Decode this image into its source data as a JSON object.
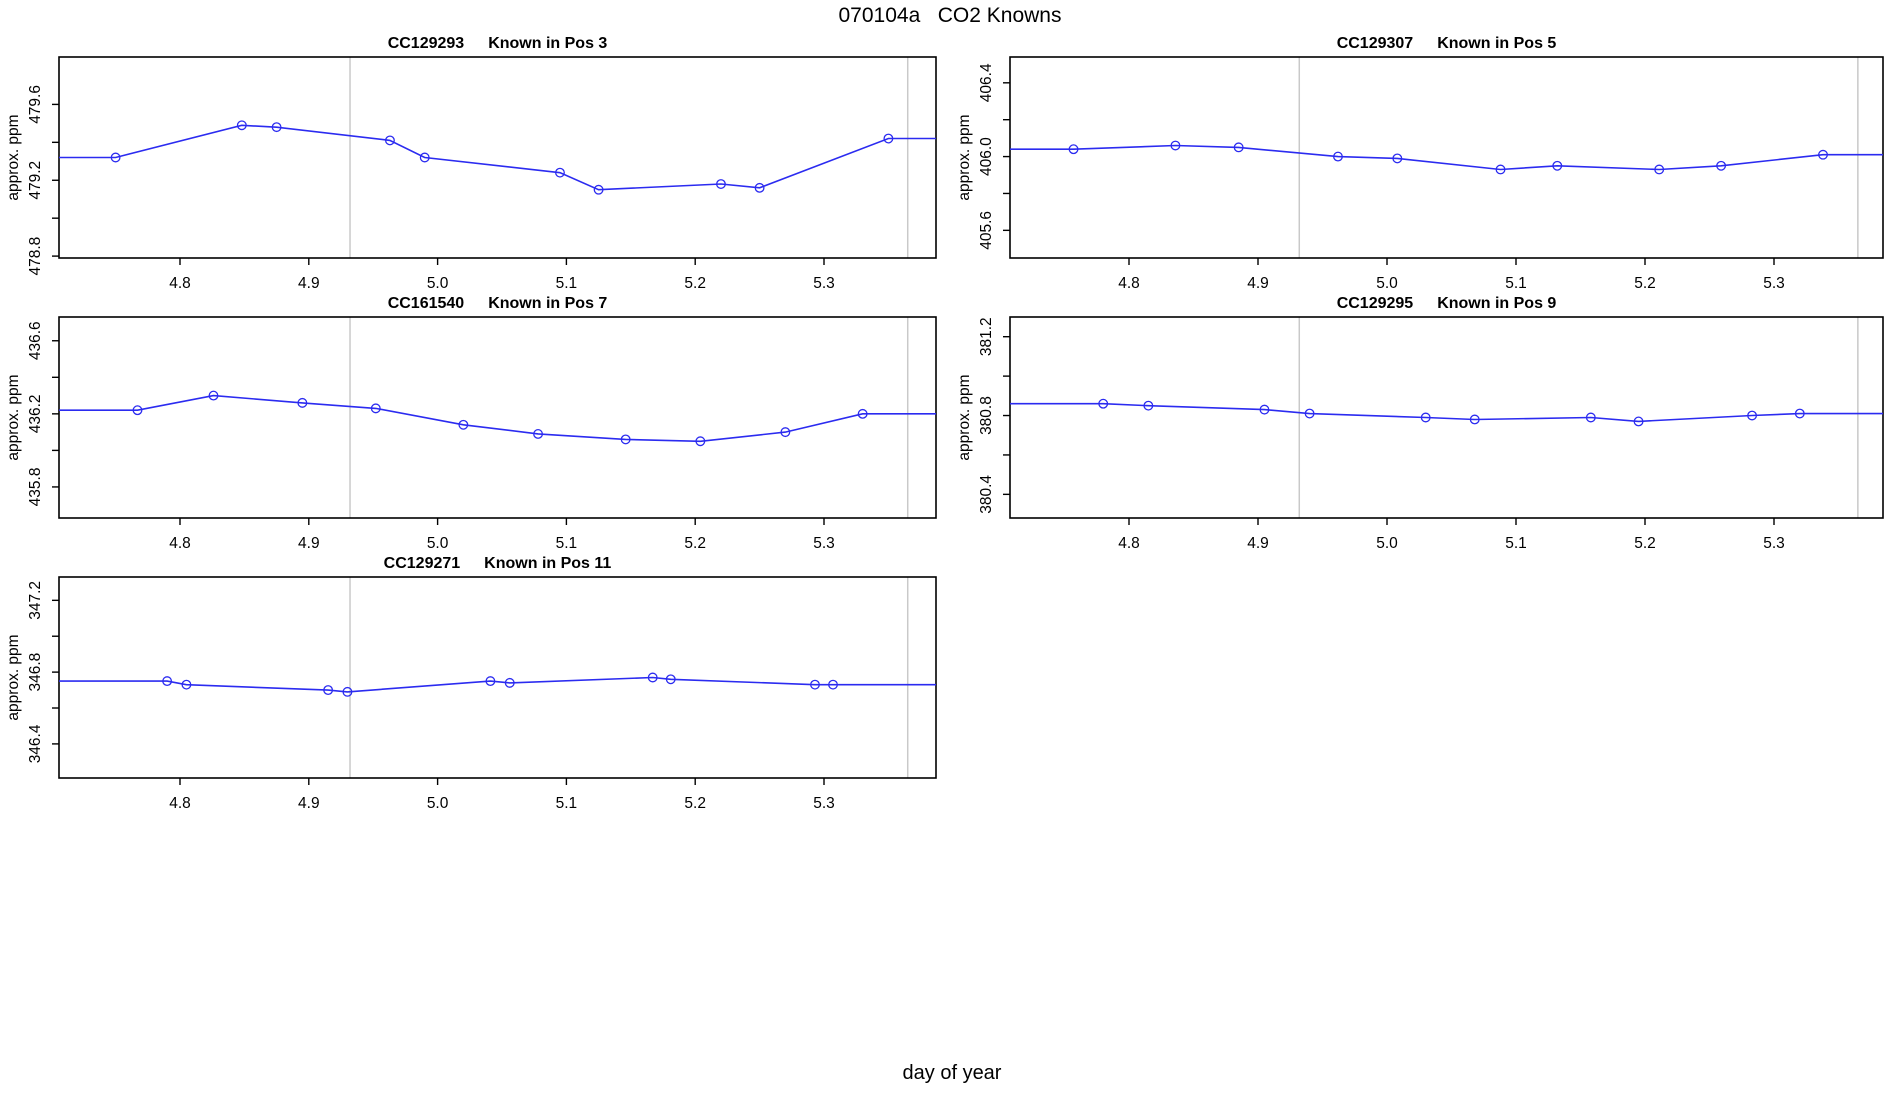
{
  "colors": {
    "series": "#2b2bf0",
    "reference_line": "#c9c9c9",
    "frame": "#000000",
    "text": "#000000",
    "background": "#ffffff"
  },
  "chart_data": {
    "type": "line",
    "figure_title": "070104a   CO2 Knowns",
    "xlabel": "day of year",
    "ylabel": "approx. ppm",
    "x_ticks": [
      4.8,
      4.9,
      5.0,
      5.1,
      5.2,
      5.3
    ],
    "x_tick_labels": [
      "4.8",
      "4.9",
      "5.0",
      "5.1",
      "5.2",
      "5.3"
    ],
    "xlim": [
      4.705,
      5.39
    ],
    "reference_lines_x": [
      4.932,
      5.365
    ],
    "legend": "none",
    "grid": "off",
    "marker": "open-circle",
    "panels": [
      {
        "id": "CC129293",
        "position_label": "Known in Pos 3",
        "title": "CC129293    Known in Pos 3",
        "grid": {
          "row": 0,
          "col": "left"
        },
        "ylim": [
          478.79,
          479.85
        ],
        "y_ticks": [
          {
            "v": 478.8,
            "label": "478.8"
          },
          {
            "v": 479.0,
            "label": ""
          },
          {
            "v": 479.2,
            "label": "479.2"
          },
          {
            "v": 479.4,
            "label": ""
          },
          {
            "v": 479.6,
            "label": "479.6"
          }
        ],
        "x": [
          4.75,
          4.848,
          4.875,
          4.963,
          4.99,
          5.095,
          5.125,
          5.22,
          5.25,
          5.35
        ],
        "y": [
          479.32,
          479.49,
          479.48,
          479.41,
          479.32,
          479.24,
          479.15,
          479.18,
          479.16,
          479.42
        ]
      },
      {
        "id": "CC129307",
        "position_label": "Known in Pos 5",
        "title": "CC129307    Known in Pos 5",
        "grid": {
          "row": 0,
          "col": "right"
        },
        "ylim": [
          405.45,
          406.54
        ],
        "y_ticks": [
          {
            "v": 405.6,
            "label": "405.6"
          },
          {
            "v": 405.8,
            "label": ""
          },
          {
            "v": 406.0,
            "label": "406.0"
          },
          {
            "v": 406.2,
            "label": ""
          },
          {
            "v": 406.4,
            "label": "406.4"
          }
        ],
        "x": [
          4.757,
          4.836,
          4.885,
          4.962,
          5.008,
          5.088,
          5.132,
          5.211,
          5.259,
          5.338
        ],
        "y": [
          406.04,
          406.06,
          406.05,
          406.0,
          405.99,
          405.93,
          405.95,
          405.93,
          405.95,
          406.01
        ]
      },
      {
        "id": "CC161540",
        "position_label": "Known in Pos 7",
        "title": "CC161540    Known in Pos 7",
        "grid": {
          "row": 1,
          "col": "left"
        },
        "ylim": [
          435.63,
          436.73
        ],
        "y_ticks": [
          {
            "v": 435.8,
            "label": "435.8"
          },
          {
            "v": 436.0,
            "label": ""
          },
          {
            "v": 436.2,
            "label": "436.2"
          },
          {
            "v": 436.4,
            "label": ""
          },
          {
            "v": 436.6,
            "label": "436.6"
          }
        ],
        "x": [
          4.767,
          4.826,
          4.895,
          4.952,
          5.02,
          5.078,
          5.146,
          5.204,
          5.27,
          5.33
        ],
        "y": [
          436.22,
          436.3,
          436.26,
          436.23,
          436.14,
          436.09,
          436.06,
          436.05,
          436.1,
          436.2
        ]
      },
      {
        "id": "CC129295",
        "position_label": "Known in Pos 9",
        "title": "CC129295    Known in Pos 9",
        "grid": {
          "row": 1,
          "col": "right"
        },
        "ylim": [
          380.28,
          381.3
        ],
        "y_ticks": [
          {
            "v": 380.4,
            "label": "380.4"
          },
          {
            "v": 380.6,
            "label": ""
          },
          {
            "v": 380.8,
            "label": "380.8"
          },
          {
            "v": 381.0,
            "label": ""
          },
          {
            "v": 381.2,
            "label": "381.2"
          }
        ],
        "x": [
          4.78,
          4.815,
          4.905,
          4.94,
          5.03,
          5.068,
          5.158,
          5.195,
          5.283,
          5.32
        ],
        "y": [
          380.86,
          380.85,
          380.83,
          380.81,
          380.79,
          380.78,
          380.79,
          380.77,
          380.8,
          380.81
        ]
      },
      {
        "id": "CC129271",
        "position_label": "Known in Pos 11",
        "title": "CC129271    Known in Pos 11",
        "grid": {
          "row": 2,
          "col": "left"
        },
        "ylim": [
          346.21,
          347.33
        ],
        "y_ticks": [
          {
            "v": 346.4,
            "label": "346.4"
          },
          {
            "v": 346.6,
            "label": ""
          },
          {
            "v": 346.8,
            "label": "346.8"
          },
          {
            "v": 347.0,
            "label": ""
          },
          {
            "v": 347.2,
            "label": "347.2"
          }
        ],
        "x": [
          4.79,
          4.805,
          4.915,
          4.93,
          5.041,
          5.056,
          5.167,
          5.181,
          5.293,
          5.307
        ],
        "y": [
          346.75,
          346.73,
          346.7,
          346.69,
          346.75,
          346.74,
          346.77,
          346.76,
          346.73,
          346.73
        ]
      }
    ]
  }
}
